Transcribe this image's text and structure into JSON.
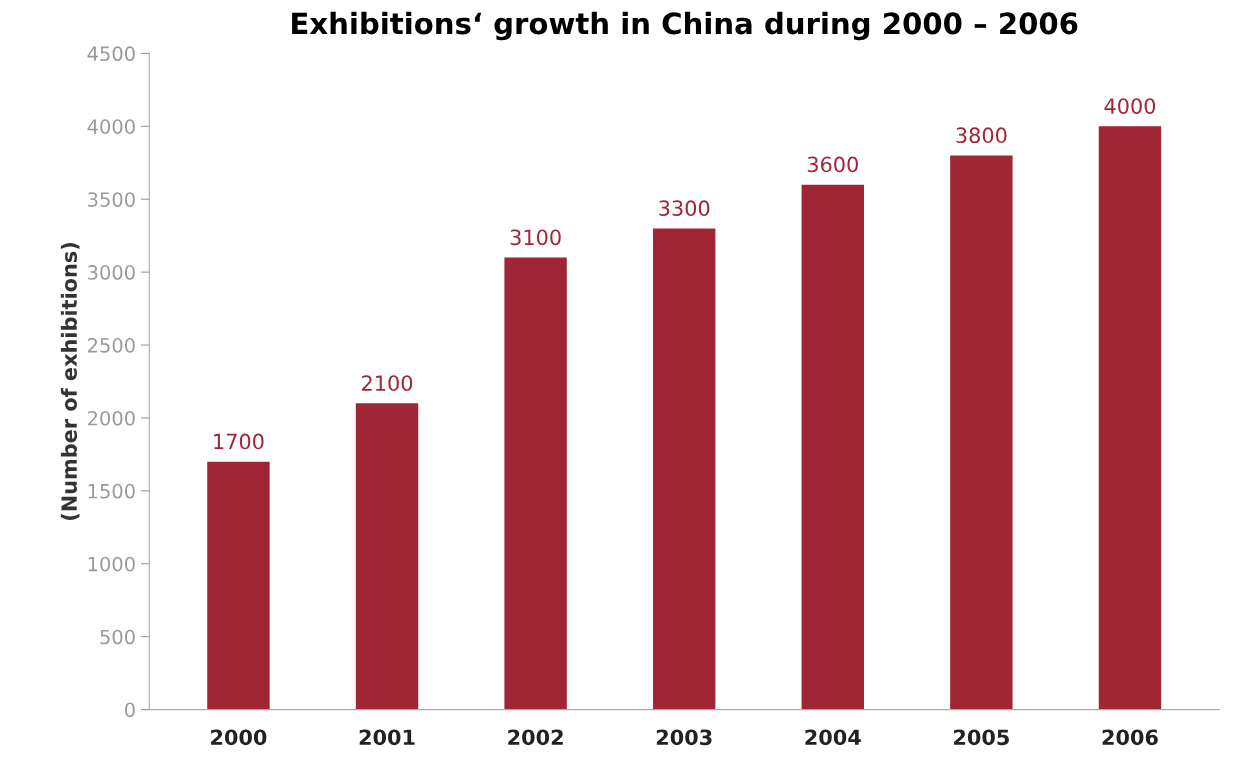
{
  "chart_data": {
    "type": "bar",
    "title": "Exhibitions‘ growth in China during 2000 – 2006",
    "ylabel": "(Number of exhibitions)",
    "categories": [
      "2000",
      "2001",
      "2002",
      "2003",
      "2004",
      "2005",
      "2006"
    ],
    "values": [
      1700,
      2100,
      3100,
      3300,
      3600,
      3800,
      4000
    ],
    "color": "#a02535",
    "ylim": [
      0,
      4500
    ],
    "yticks": [
      0,
      500,
      1000,
      1500,
      2000,
      2500,
      3000,
      3500,
      4000,
      4500
    ],
    "data_labels": true,
    "grid": false
  }
}
